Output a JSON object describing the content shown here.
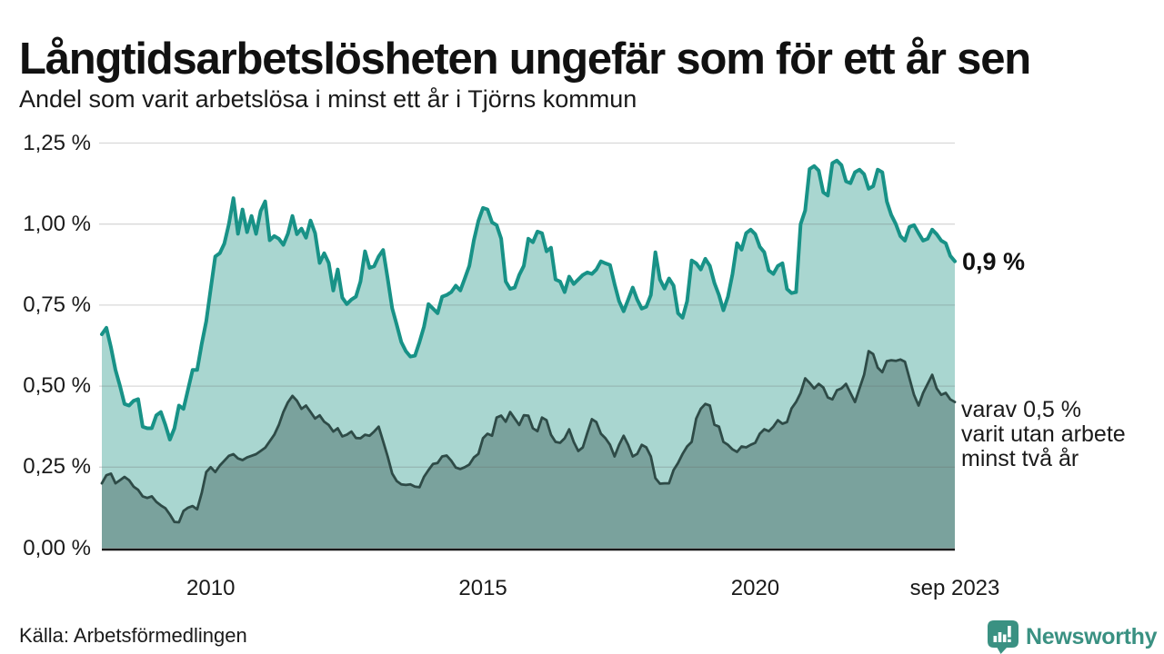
{
  "chart_data": {
    "type": "area",
    "title": "Långtidsarbetslösheten ungefär som för ett år sen",
    "subtitle": "Andel som varit arbetslösa i minst ett år i Tjörns kommun",
    "unit": "%",
    "x_start": "2008-01",
    "x_end": "2023-09",
    "frequency": "monthly",
    "ylim": [
      0,
      1.25
    ],
    "grid": "horizontal",
    "legend_position": "right-annotations",
    "series": [
      {
        "name": "Andel som varit arbetslösa i minst ett år",
        "color": "#189287",
        "fill": "#a9d6d0",
        "line_width": 4,
        "latest_value": 0.9,
        "values": [
          0.66,
          0.68,
          0.62,
          0.55,
          0.5,
          0.445,
          0.44,
          0.455,
          0.46,
          0.375,
          0.37,
          0.37,
          0.41,
          0.42,
          0.38,
          0.335,
          0.37,
          0.44,
          0.43,
          0.49,
          0.55,
          0.55,
          0.63,
          0.7,
          0.8,
          0.9,
          0.91,
          0.94,
          1.0,
          1.08,
          0.97,
          1.045,
          0.975,
          1.025,
          0.97,
          1.04,
          1.07,
          0.95,
          0.963,
          0.955,
          0.936,
          0.97,
          1.025,
          0.969,
          0.986,
          0.958,
          1.011,
          0.972,
          0.88,
          0.91,
          0.88,
          0.795,
          0.86,
          0.773,
          0.753,
          0.767,
          0.776,
          0.823,
          0.916,
          0.865,
          0.87,
          0.9,
          0.92,
          0.832,
          0.74,
          0.689,
          0.636,
          0.608,
          0.591,
          0.594,
          0.636,
          0.683,
          0.753,
          0.739,
          0.725,
          0.776,
          0.781,
          0.79,
          0.81,
          0.795,
          0.832,
          0.871,
          0.95,
          1.01,
          1.05,
          1.045,
          1.005,
          0.997,
          0.955,
          0.823,
          0.8,
          0.804,
          0.843,
          0.871,
          0.955,
          0.944,
          0.977,
          0.972,
          0.916,
          0.927,
          0.829,
          0.823,
          0.79,
          0.838,
          0.815,
          0.829,
          0.843,
          0.851,
          0.846,
          0.86,
          0.885,
          0.879,
          0.874,
          0.815,
          0.762,
          0.731,
          0.767,
          0.804,
          0.767,
          0.739,
          0.745,
          0.781,
          0.913,
          0.829,
          0.801,
          0.832,
          0.81,
          0.725,
          0.711,
          0.762,
          0.888,
          0.879,
          0.86,
          0.893,
          0.871,
          0.818,
          0.781,
          0.734,
          0.776,
          0.846,
          0.941,
          0.921,
          0.972,
          0.983,
          0.969,
          0.93,
          0.913,
          0.857,
          0.846,
          0.871,
          0.879,
          0.8,
          0.787,
          0.79,
          1.0,
          1.042,
          1.17,
          1.179,
          1.165,
          1.098,
          1.088,
          1.188,
          1.196,
          1.182,
          1.132,
          1.126,
          1.16,
          1.168,
          1.154,
          1.109,
          1.117,
          1.168,
          1.16,
          1.07,
          1.028,
          1.0,
          0.963,
          0.949,
          0.991,
          0.997,
          0.972,
          0.949,
          0.955,
          0.983,
          0.969,
          0.949,
          0.941,
          0.902,
          0.885
        ]
      },
      {
        "name": "varav varit utan arbete i minst två år",
        "color": "#2e4b47",
        "fill": "#7aa29d",
        "line_width": 2.8,
        "latest_value": 0.5,
        "values": [
          0.2,
          0.225,
          0.23,
          0.2,
          0.21,
          0.22,
          0.21,
          0.19,
          0.18,
          0.16,
          0.155,
          0.16,
          0.143,
          0.132,
          0.123,
          0.104,
          0.081,
          0.08,
          0.115,
          0.125,
          0.13,
          0.12,
          0.17,
          0.235,
          0.25,
          0.235,
          0.255,
          0.27,
          0.285,
          0.29,
          0.277,
          0.272,
          0.28,
          0.285,
          0.29,
          0.3,
          0.31,
          0.33,
          0.35,
          0.38,
          0.42,
          0.45,
          0.47,
          0.455,
          0.43,
          0.44,
          0.42,
          0.4,
          0.41,
          0.39,
          0.38,
          0.36,
          0.37,
          0.345,
          0.35,
          0.36,
          0.34,
          0.339,
          0.35,
          0.347,
          0.36,
          0.375,
          0.33,
          0.283,
          0.23,
          0.207,
          0.197,
          0.195,
          0.197,
          0.19,
          0.188,
          0.22,
          0.241,
          0.26,
          0.263,
          0.283,
          0.286,
          0.27,
          0.249,
          0.244,
          0.25,
          0.258,
          0.28,
          0.291,
          0.339,
          0.353,
          0.347,
          0.403,
          0.409,
          0.39,
          0.42,
          0.4,
          0.38,
          0.41,
          0.409,
          0.37,
          0.361,
          0.403,
          0.395,
          0.35,
          0.328,
          0.325,
          0.339,
          0.367,
          0.328,
          0.3,
          0.311,
          0.356,
          0.398,
          0.389,
          0.353,
          0.339,
          0.319,
          0.283,
          0.319,
          0.347,
          0.319,
          0.283,
          0.291,
          0.319,
          0.311,
          0.283,
          0.216,
          0.199,
          0.2,
          0.2,
          0.241,
          0.263,
          0.291,
          0.314,
          0.328,
          0.4,
          0.43,
          0.445,
          0.44,
          0.381,
          0.375,
          0.328,
          0.319,
          0.305,
          0.297,
          0.314,
          0.311,
          0.319,
          0.325,
          0.353,
          0.367,
          0.361,
          0.375,
          0.395,
          0.384,
          0.389,
          0.431,
          0.451,
          0.479,
          0.524,
          0.51,
          0.493,
          0.507,
          0.496,
          0.465,
          0.459,
          0.487,
          0.493,
          0.507,
          0.479,
          0.451,
          0.493,
          0.535,
          0.608,
          0.599,
          0.557,
          0.543,
          0.577,
          0.58,
          0.578,
          0.582,
          0.575,
          0.524,
          0.473,
          0.44,
          0.479,
          0.507,
          0.535,
          0.493,
          0.473,
          0.479,
          0.459,
          0.451
        ]
      }
    ]
  },
  "axes": {
    "y": {
      "ticks": [
        {
          "label": "1,25 %",
          "value": 1.25
        },
        {
          "label": "1,00 %",
          "value": 1.0
        },
        {
          "label": "0,75 %",
          "value": 0.75
        },
        {
          "label": "0,50 %",
          "value": 0.5
        },
        {
          "label": "0,25 %",
          "value": 0.25
        },
        {
          "label": "0,00 %",
          "value": 0.0
        }
      ]
    },
    "x": {
      "ticks": [
        {
          "label": "2010",
          "month_index": 24
        },
        {
          "label": "2015",
          "month_index": 84
        },
        {
          "label": "2020",
          "month_index": 144
        },
        {
          "label": "sep 2023",
          "month_index": 188
        }
      ]
    }
  },
  "annotations": {
    "latest_total": "0,9 %",
    "breakdown_lines": [
      "varav 0,5 %",
      "varit utan arbete",
      "minst två år"
    ]
  },
  "footer": {
    "source": "Källa: Arbetsförmedlingen",
    "logo_text": "Newsworthy"
  },
  "colors": {
    "accent_teal": "#189287",
    "fill_light": "#a9d6d0",
    "fill_dark": "#7aa29d",
    "line_dark": "#2e4b47",
    "gridline": "rgba(100,100,100,0.25)",
    "axis_line": "#1a1a1a",
    "logo_teal": "#3a9182",
    "text": "#1a1a1a"
  }
}
